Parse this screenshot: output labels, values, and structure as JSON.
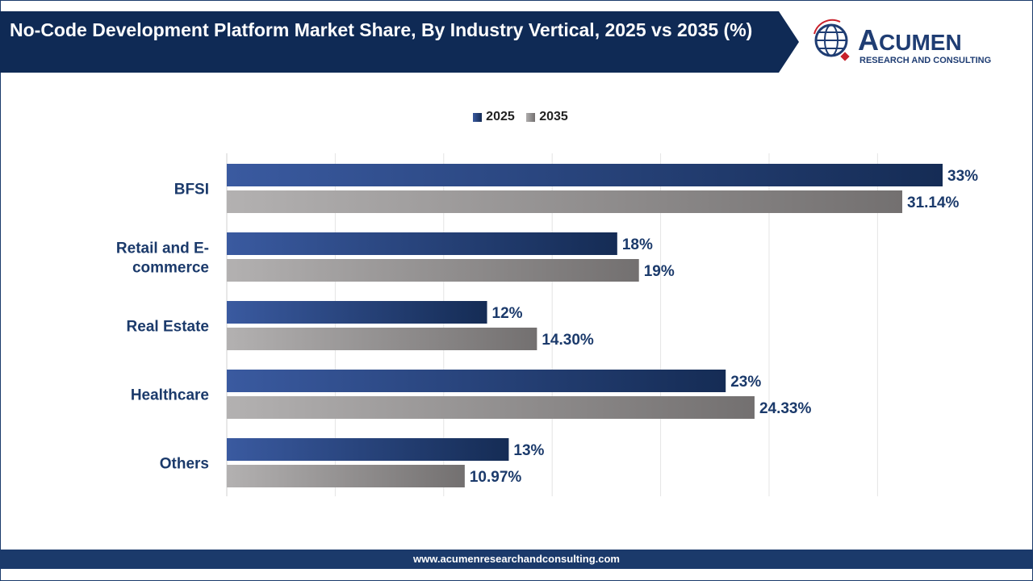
{
  "header": {
    "title": "No-Code Development Platform Market Share, By Industry Vertical, 2025 vs 2035 (%)"
  },
  "logo": {
    "name": "ACUMEN",
    "tagline": "RESEARCH AND CONSULTING"
  },
  "footer": {
    "url": "www.acumenresearchandconsulting.com"
  },
  "colors": {
    "series2025": "#1f3d73",
    "series2035": "#8a8787",
    "navy": "#1b3a6b"
  },
  "chart_data": {
    "type": "bar",
    "orientation": "horizontal",
    "title": "No-Code Development Platform Market Share, By Industry Vertical, 2025 vs 2035 (%)",
    "categories": [
      "BFSI",
      "Retail and E-commerce",
      "Real Estate",
      "Healthcare",
      "Others"
    ],
    "series": [
      {
        "name": "2025",
        "values": [
          33,
          18,
          12,
          23,
          13
        ],
        "labels": [
          "33%",
          "18%",
          "12%",
          "23%",
          "13%"
        ]
      },
      {
        "name": "2035",
        "values": [
          31.14,
          19,
          14.3,
          24.33,
          10.97
        ],
        "labels": [
          "31.14%",
          "19%",
          "14.30%",
          "24.33%",
          "10.97%"
        ]
      }
    ],
    "xlim": [
      0,
      35
    ],
    "grid": true,
    "legend": "top-center"
  }
}
